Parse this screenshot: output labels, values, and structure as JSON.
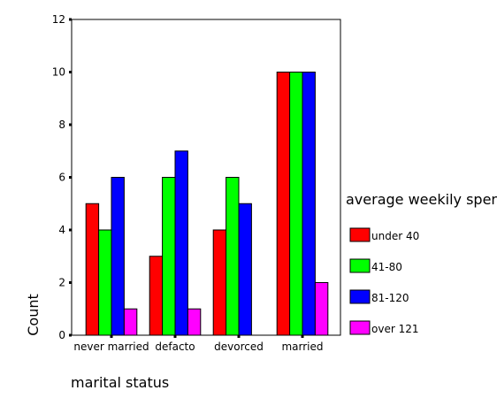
{
  "chart_data": {
    "type": "bar",
    "xlabel": "marital status",
    "ylabel": "Count",
    "ylim": [
      0,
      12
    ],
    "yticks": [
      0,
      2,
      4,
      6,
      8,
      10,
      12
    ],
    "grid": false,
    "legend_position": "right",
    "legend_title": "average weekily spen",
    "categories": [
      "never married",
      "defacto",
      "devorced",
      "married"
    ],
    "series": [
      {
        "name": "under 40",
        "color": "#ff0000",
        "values": [
          5,
          3,
          4,
          10
        ]
      },
      {
        "name": "41-80",
        "color": "#00ff00",
        "values": [
          4,
          6,
          6,
          10
        ]
      },
      {
        "name": "81-120",
        "color": "#0000ff",
        "values": [
          6,
          7,
          5,
          10
        ]
      },
      {
        "name": "over 121",
        "color": "#ff00ff",
        "values": [
          1,
          1,
          0,
          2
        ]
      }
    ]
  }
}
